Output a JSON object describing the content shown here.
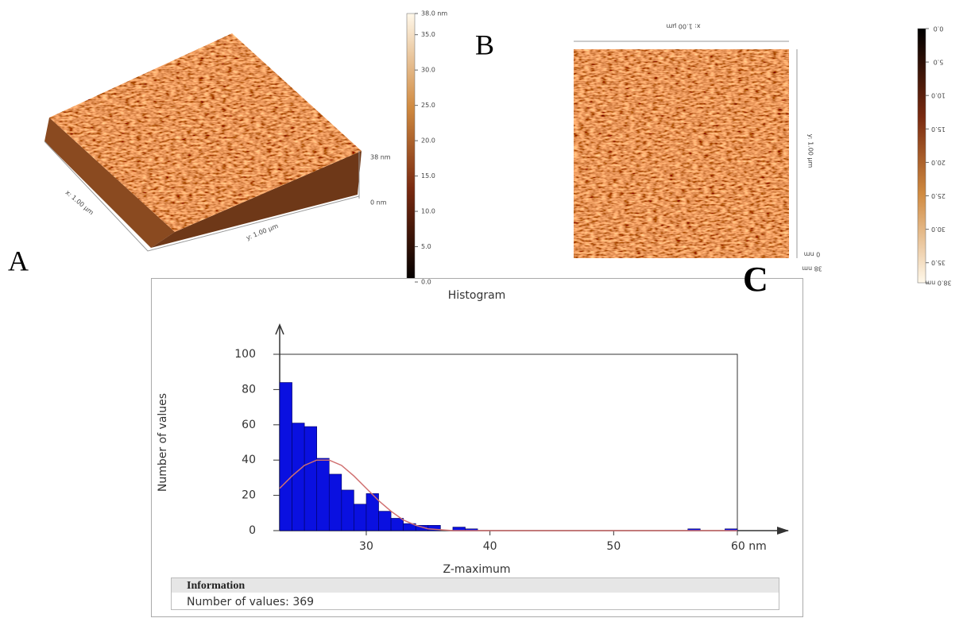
{
  "panels": {
    "a": {
      "label": "A",
      "x_axis": "y: 1.00 µm",
      "y_axis": "x: 1.00 µm",
      "z_top": "38 nm",
      "z_bottom": "0 nm",
      "colorbar": {
        "lim": [
          0,
          38
        ],
        "ticks": [
          {
            "value": 0,
            "label": "0.0"
          },
          {
            "value": 5,
            "label": "5.0"
          },
          {
            "value": 10,
            "label": "10.0"
          },
          {
            "value": 15,
            "label": "15.0"
          },
          {
            "value": 20,
            "label": "20.0"
          },
          {
            "value": 25,
            "label": "25.0"
          },
          {
            "value": 30,
            "label": "30.0"
          },
          {
            "value": 35,
            "label": "35.0"
          },
          {
            "value": 38,
            "label": "38.0 nm"
          }
        ]
      }
    },
    "b": {
      "label": "B",
      "x_axis": "x: 1.00 µm",
      "y_axis": "y: 1.00 µm",
      "z_bottom": "0 nm",
      "z_top": "38 nm",
      "colorbar": {
        "lim": [
          0,
          38
        ],
        "ticks": [
          {
            "value": 0,
            "label": "0.0"
          },
          {
            "value": 5,
            "label": "5.0"
          },
          {
            "value": 10,
            "label": "10.0"
          },
          {
            "value": 15,
            "label": "15.0"
          },
          {
            "value": 20,
            "label": "20.0"
          },
          {
            "value": 25,
            "label": "25.0"
          },
          {
            "value": 30,
            "label": "30.0"
          },
          {
            "value": 35,
            "label": "35.0"
          },
          {
            "value": 38,
            "label": "38.0 nm"
          }
        ]
      }
    }
  },
  "chart_data": {
    "type": "histogram",
    "panel_label": "C",
    "title": "Histogram",
    "x_label": "Z-maximum",
    "y_label": "Number of values",
    "bins": [
      23,
      24,
      25,
      26,
      27,
      28,
      29,
      30,
      31,
      32,
      33,
      34,
      35,
      36,
      37,
      38,
      39,
      40,
      41,
      42,
      43,
      44,
      45,
      46,
      47,
      48,
      49,
      50,
      51,
      52,
      53,
      54,
      55,
      56,
      57,
      58,
      59,
      60
    ],
    "values": [
      84,
      61,
      59,
      41,
      32,
      23,
      15,
      21,
      11,
      7,
      4,
      3,
      3,
      0,
      2,
      1,
      0,
      0,
      0,
      0,
      0,
      0,
      0,
      0,
      0,
      0,
      0,
      0,
      0,
      0,
      0,
      0,
      0,
      1,
      0,
      0,
      1
    ],
    "color": "#0a10e0",
    "fit": {
      "color": "#d07070",
      "x": [
        23,
        24,
        25,
        26,
        27,
        28,
        29,
        30,
        31,
        32,
        33,
        34,
        35,
        36,
        37,
        40,
        50,
        60
      ],
      "values": [
        24,
        31,
        37,
        40,
        40,
        37,
        31,
        24,
        17,
        11,
        6,
        3,
        1,
        0.5,
        0,
        0,
        0,
        0
      ]
    },
    "xlim": [
      23,
      60
    ],
    "xticks": [
      30,
      40,
      50,
      {
        "value": 60,
        "label": "60 nm"
      }
    ],
    "ylim": [
      0,
      100
    ],
    "yticks": [
      0,
      20,
      40,
      60,
      80,
      100
    ],
    "info": {
      "header": "Information",
      "row": "Number of values: 369"
    }
  }
}
